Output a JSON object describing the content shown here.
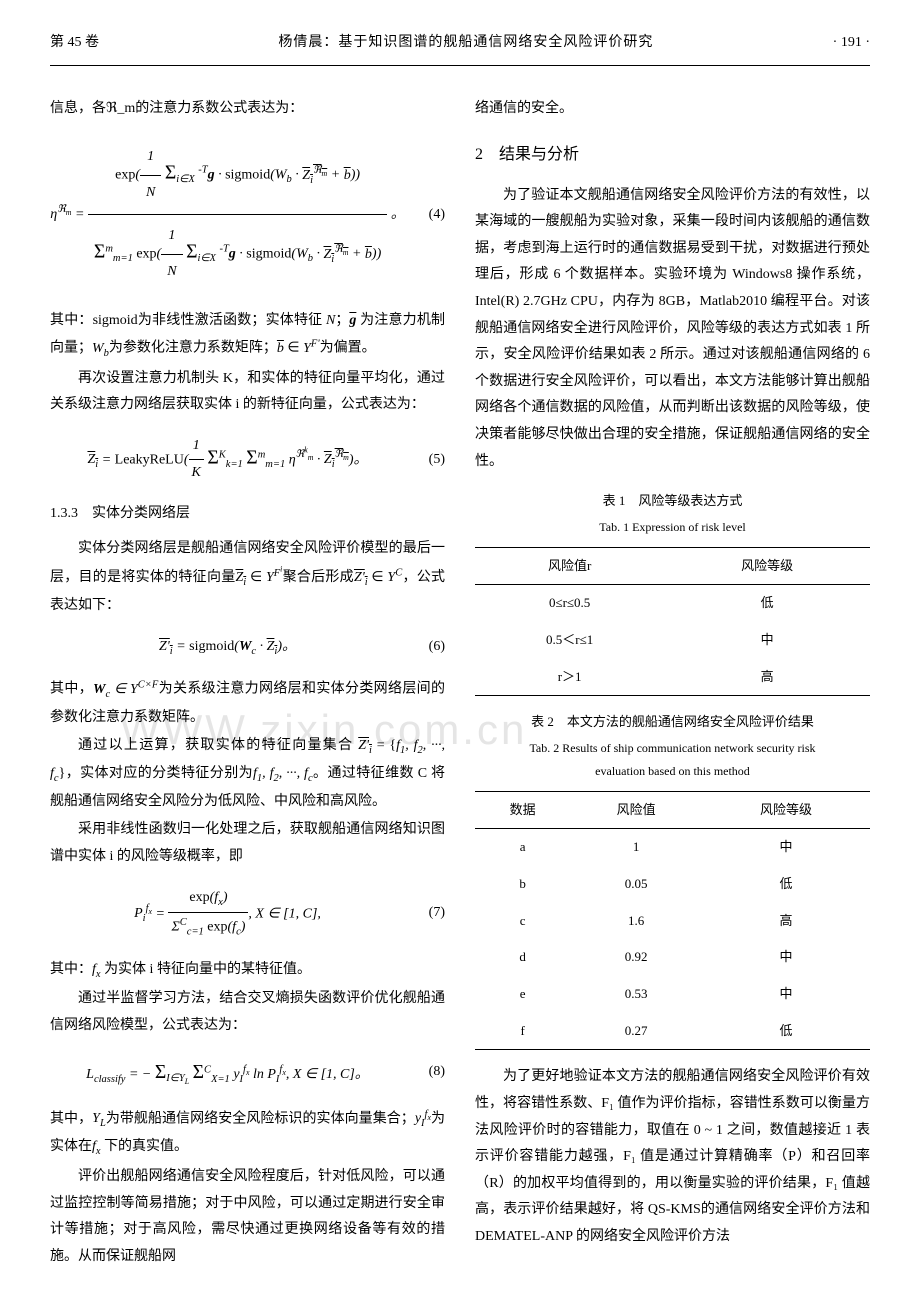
{
  "header": {
    "left": "第 45 卷",
    "center": "杨倩晨：基于知识图谱的舰船通信网络安全风险评价研究",
    "right": "· 191 ·"
  },
  "left_column": {
    "p1": "信息，各ℜ_m的注意力系数公式表达为：",
    "eq4_num": "(4)",
    "p2_prefix": "其中：sigmoid为非线性激活函数；实体特征",
    "p2_mid": "为注意力机制向量；",
    "p2_mid2": "为参数化注意力系数矩阵；",
    "p2_suffix": "为偏置。",
    "p3": "再次设置注意力机制头 K，和实体的特征向量平均化，通过关系级注意力网络层获取实体 i 的新特征向量，公式表达为：",
    "eq5_num": "(5)",
    "subsection_133": "1.3.3　实体分类网络层",
    "p4": "实体分类网络层是舰船通信网络安全风险评价模型的最后一层，目的是将实体的特征向量",
    "p4_suffix": "聚合后形成",
    "p4_suffix2": "，公式表达如下：",
    "eq6_num": "(6)",
    "p5_prefix": "其中，",
    "p5_mid": "为关系级注意力网络层和实体分类网络层间的参数化注意力系数矩阵。",
    "p6_prefix": "通过以上运算，获取实体的特征向量集合",
    "p6_mid": "实体对应的分类特征分别为",
    "p6_suffix": "通过特征维数 C 将舰船通信网络安全风险分为低风险、中风险和高风险。",
    "p7": "采用非线性函数归一化处理之后，获取舰船通信网络知识图谱中实体 i 的风险等级概率，即",
    "eq7_num": "(7)",
    "p8_prefix": "其中：",
    "p8_suffix": "为实体 i 特征向量中的某特征值。",
    "p9": "通过半监督学习方法，结合交叉熵损失函数评价优化舰船通信网络风险模型，公式表达为：",
    "eq8_num": "(8)",
    "p10_prefix": "其中，",
    "p10_mid": "为带舰船通信网络安全风险标识的实体向量集合；",
    "p10_suffix": "为实体在",
    "p10_suffix2": "下的真实值。",
    "p11": "评价出舰船网络通信安全风险程度后，针对低风险，可以通过监控控制等简易措施；对于中风险，可以通过定期进行安全审计等措施；对于高风险，需尽快通过更换网络设备等有效的措施。从而保证舰船网"
  },
  "right_column": {
    "p1": "络通信的安全。",
    "section2_num": "2",
    "section2_title": "结果与分析",
    "p2": "为了验证本文舰船通信网络安全风险评价方法的有效性，以某海域的一艘舰船为实验对象，采集一段时间内该舰船的通信数据，考虑到海上运行时的通信数据易受到干扰，对数据进行预处理后，形成 6 个数据样本。实验环境为 Windows8 操作系统，Intel(R) 2.7GHz CPU，内存为 8GB，Matlab2010 编程平台。对该舰船通信网络安全进行风险评价，风险等级的表达方式如表 1 所示，安全风险评价结果如表 2 所示。通过对该舰船通信网络的 6 个数据进行安全风险评价，可以看出，本文方法能够计算出舰船网络各个通信数据的风险值，从而判断出该数据的风险等级，使决策者能够尽快做出合理的安全措施，保证舰船通信网络的安全性。",
    "table1": {
      "title_cn": "表 1　风险等级表达方式",
      "title_en": "Tab. 1   Expression of risk level",
      "headers": [
        "风险值r",
        "风险等级"
      ],
      "rows": [
        [
          "0≤r≤0.5",
          "低"
        ],
        [
          "0.5＜r≤1",
          "中"
        ],
        [
          "r＞1",
          "高"
        ]
      ]
    },
    "table2": {
      "title_cn": "表 2　本文方法的舰船通信网络安全风险评价结果",
      "title_en_line1": "Tab. 2   Results of ship communication network security risk",
      "title_en_line2": "evaluation based on this method",
      "headers": [
        "数据",
        "风险值",
        "风险等级"
      ],
      "rows": [
        [
          "a",
          "1",
          "中"
        ],
        [
          "b",
          "0.05",
          "低"
        ],
        [
          "c",
          "1.6",
          "高"
        ],
        [
          "d",
          "0.92",
          "中"
        ],
        [
          "e",
          "0.53",
          "中"
        ],
        [
          "f",
          "0.27",
          "低"
        ]
      ]
    },
    "p3": "为了更好地验证本文方法的舰船通信网络安全风险评价有效性，将容错性系数、F₁ 值作为评价指标，容错性系数可以衡量方法风险评价时的容错能力，取值在 0 ~ 1 之间，数值越接近 1 表示评价容错能力越强，F₁ 值是通过计算精确率（P）和召回率（R）的加权平均值得到的，用以衡量实验的评价结果，F₁ 值越高，表示评价结果越好，将 QS-KMS的通信网络安全评价方法和 DEMATEL-ANP 的网络安全风险评价方法"
  },
  "watermark": "WWW.zixin.com.cn"
}
